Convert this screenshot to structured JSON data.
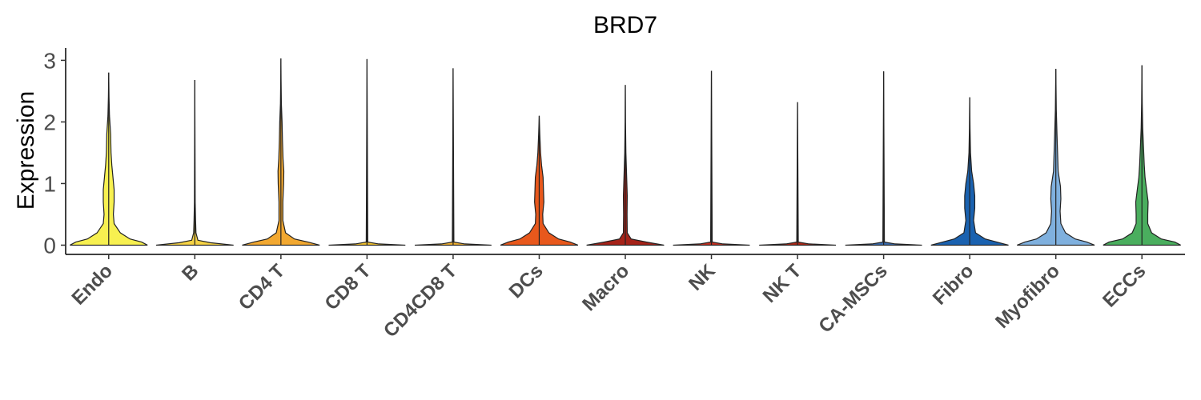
{
  "chart_data": {
    "type": "violin",
    "title": "BRD7",
    "xlabel": "",
    "ylabel": "Expression",
    "ylim": [
      -0.15,
      3.2
    ],
    "yticks": [
      0,
      1,
      2,
      3
    ],
    "grid": false,
    "legend": "none",
    "categories": [
      "Endo",
      "B",
      "CD4 T",
      "CD8 T",
      "CD4CD8 T",
      "DCs",
      "Macro",
      "NK",
      "NK T",
      "CA-MSCs",
      "Fibro",
      "Myofibro",
      "ECCs"
    ],
    "series": [
      {
        "category": "Endo",
        "max": 2.8,
        "color": "#F7F050",
        "density": [
          [
            0,
            1.0
          ],
          [
            0.05,
            0.85
          ],
          [
            0.1,
            0.55
          ],
          [
            0.2,
            0.3
          ],
          [
            0.35,
            0.14
          ],
          [
            0.5,
            0.12
          ],
          [
            0.7,
            0.14
          ],
          [
            0.9,
            0.14
          ],
          [
            1.1,
            0.11
          ],
          [
            1.3,
            0.08
          ],
          [
            1.5,
            0.06
          ],
          [
            1.8,
            0.05
          ],
          [
            2.1,
            0.02
          ],
          [
            2.4,
            0.008
          ],
          [
            2.8,
            0.0
          ]
        ]
      },
      {
        "category": "B",
        "max": 2.68,
        "color": "#F6D344",
        "density": [
          [
            0,
            1.0
          ],
          [
            0.04,
            0.4
          ],
          [
            0.08,
            0.08
          ],
          [
            0.2,
            0.03
          ],
          [
            0.4,
            0.02
          ],
          [
            0.7,
            0.01
          ],
          [
            1.5,
            0.006
          ],
          [
            2.68,
            0.0
          ]
        ]
      },
      {
        "category": "CD4 T",
        "max": 3.03,
        "color": "#F2A830",
        "density": [
          [
            0,
            1.0
          ],
          [
            0.05,
            0.7
          ],
          [
            0.1,
            0.35
          ],
          [
            0.2,
            0.12
          ],
          [
            0.4,
            0.05
          ],
          [
            0.7,
            0.05
          ],
          [
            1.0,
            0.07
          ],
          [
            1.2,
            0.075
          ],
          [
            1.4,
            0.055
          ],
          [
            1.7,
            0.04
          ],
          [
            2.0,
            0.03
          ],
          [
            2.3,
            0.012
          ],
          [
            2.7,
            0.004
          ],
          [
            3.03,
            0.0
          ]
        ]
      },
      {
        "category": "CD8 T",
        "max": 3.02,
        "color": "#F4C430",
        "density": [
          [
            0,
            0.99
          ],
          [
            0.02,
            0.3
          ],
          [
            0.05,
            0.02
          ],
          [
            3.02,
            0.0
          ]
        ]
      },
      {
        "category": "CD4CD8 T",
        "max": 2.87,
        "color": "#F0B030",
        "density": [
          [
            0,
            0.99
          ],
          [
            0.02,
            0.3
          ],
          [
            0.05,
            0.02
          ],
          [
            2.87,
            0.0
          ]
        ]
      },
      {
        "category": "DCs",
        "max": 2.1,
        "color": "#E8581C",
        "density": [
          [
            0,
            1.0
          ],
          [
            0.05,
            0.8
          ],
          [
            0.1,
            0.5
          ],
          [
            0.2,
            0.25
          ],
          [
            0.35,
            0.1
          ],
          [
            0.5,
            0.09
          ],
          [
            0.7,
            0.12
          ],
          [
            0.9,
            0.11
          ],
          [
            1.1,
            0.1
          ],
          [
            1.3,
            0.06
          ],
          [
            1.5,
            0.035
          ],
          [
            1.8,
            0.015
          ],
          [
            2.1,
            0.0
          ]
        ]
      },
      {
        "category": "Macro",
        "max": 2.6,
        "color": "#A52218",
        "density": [
          [
            0,
            1.0
          ],
          [
            0.05,
            0.55
          ],
          [
            0.1,
            0.15
          ],
          [
            0.2,
            0.05
          ],
          [
            0.5,
            0.045
          ],
          [
            0.8,
            0.05
          ],
          [
            1.1,
            0.035
          ],
          [
            1.5,
            0.015
          ],
          [
            2.0,
            0.005
          ],
          [
            2.6,
            0.0
          ]
        ]
      },
      {
        "category": "NK",
        "max": 2.83,
        "color": "#C83020",
        "density": [
          [
            0,
            0.99
          ],
          [
            0.02,
            0.3
          ],
          [
            0.05,
            0.02
          ],
          [
            2.83,
            0.0
          ]
        ]
      },
      {
        "category": "NK T",
        "max": 2.32,
        "color": "#B02818",
        "density": [
          [
            0,
            0.99
          ],
          [
            0.02,
            0.3
          ],
          [
            0.05,
            0.02
          ],
          [
            2.32,
            0.0
          ]
        ]
      },
      {
        "category": "CA-MSCs",
        "max": 2.82,
        "color": "#3A6CB0",
        "density": [
          [
            0,
            0.99
          ],
          [
            0.02,
            0.3
          ],
          [
            0.05,
            0.02
          ],
          [
            2.82,
            0.0
          ]
        ]
      },
      {
        "category": "Fibro",
        "max": 2.4,
        "color": "#1A62B0",
        "density": [
          [
            0,
            1.0
          ],
          [
            0.05,
            0.7
          ],
          [
            0.1,
            0.4
          ],
          [
            0.2,
            0.15
          ],
          [
            0.4,
            0.1
          ],
          [
            0.6,
            0.13
          ],
          [
            0.8,
            0.13
          ],
          [
            1.0,
            0.1
          ],
          [
            1.2,
            0.05
          ],
          [
            1.5,
            0.02
          ],
          [
            1.9,
            0.008
          ],
          [
            2.4,
            0.0
          ]
        ]
      },
      {
        "category": "Myofibro",
        "max": 2.86,
        "color": "#7FB0DE",
        "density": [
          [
            0,
            1.0
          ],
          [
            0.05,
            0.8
          ],
          [
            0.1,
            0.5
          ],
          [
            0.2,
            0.25
          ],
          [
            0.35,
            0.13
          ],
          [
            0.55,
            0.11
          ],
          [
            0.75,
            0.13
          ],
          [
            0.95,
            0.12
          ],
          [
            1.2,
            0.06
          ],
          [
            1.5,
            0.045
          ],
          [
            1.8,
            0.03
          ],
          [
            2.2,
            0.012
          ],
          [
            2.86,
            0.0
          ]
        ]
      },
      {
        "category": "ECCs",
        "max": 2.92,
        "color": "#4AAE5E",
        "density": [
          [
            0,
            1.0
          ],
          [
            0.05,
            0.85
          ],
          [
            0.1,
            0.5
          ],
          [
            0.2,
            0.25
          ],
          [
            0.35,
            0.15
          ],
          [
            0.5,
            0.15
          ],
          [
            0.7,
            0.16
          ],
          [
            0.9,
            0.12
          ],
          [
            1.1,
            0.08
          ],
          [
            1.3,
            0.06
          ],
          [
            1.6,
            0.04
          ],
          [
            1.9,
            0.02
          ],
          [
            2.3,
            0.008
          ],
          [
            2.92,
            0.0
          ]
        ]
      }
    ]
  }
}
